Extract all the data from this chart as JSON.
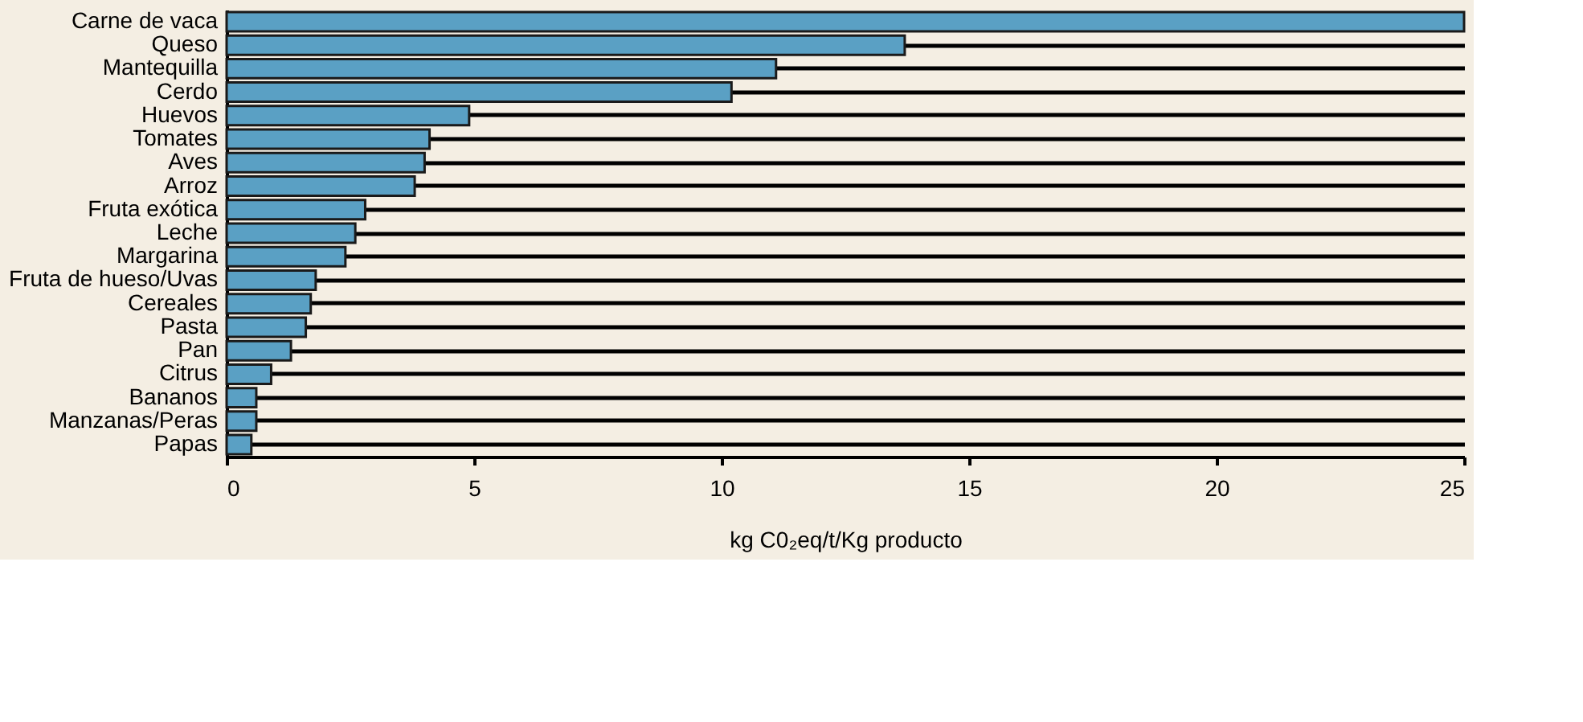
{
  "chart_data": {
    "type": "bar",
    "orientation": "horizontal",
    "xlabel": "kg C0₂eq/t/Kg producto",
    "categories": [
      "Carne de vaca",
      "Queso",
      "Mantequilla",
      "Cerdo",
      "Huevos",
      "Tomates",
      "Aves",
      "Arroz",
      "Fruta exótica",
      "Leche",
      "Margarina",
      "Fruta de hueso/Uvas",
      "Cereales",
      "Pasta",
      "Pan",
      "Citrus",
      "Bananos",
      "Manzanas/Peras",
      "Papas"
    ],
    "values": [
      25,
      13.7,
      11.1,
      10.2,
      4.9,
      4.1,
      4.0,
      3.8,
      2.8,
      2.6,
      2.4,
      1.8,
      1.7,
      1.6,
      1.3,
      0.9,
      0.6,
      0.6,
      0.5
    ],
    "color": "#5aa0c4",
    "xlim": [
      0,
      25
    ],
    "xticks": [
      0,
      5,
      10,
      15,
      20,
      25
    ],
    "grid": "y"
  }
}
